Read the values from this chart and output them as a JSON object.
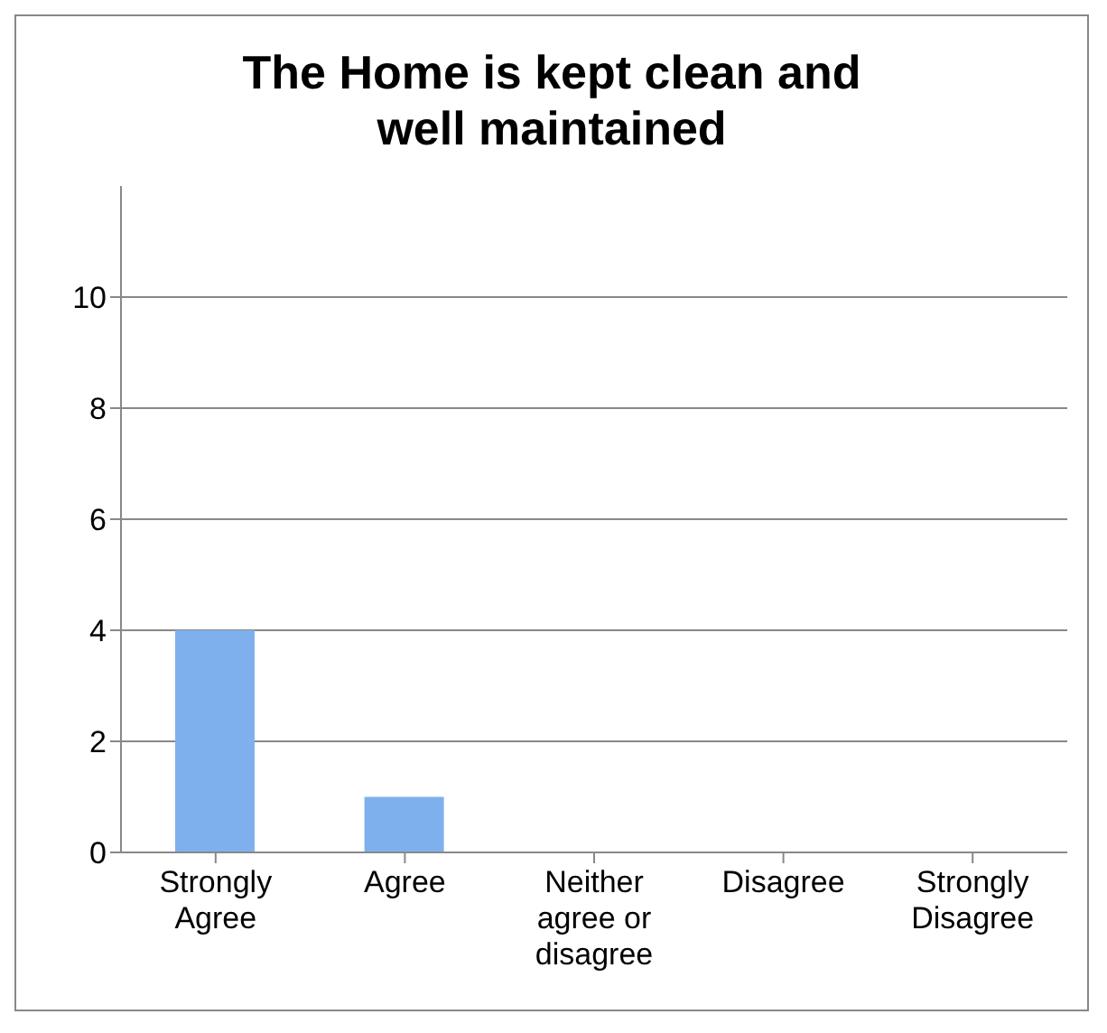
{
  "chart_data": {
    "type": "bar",
    "title": "The Home is kept clean and well maintained",
    "categories": [
      "Strongly Agree",
      "Agree",
      "Neither agree or disagree",
      "Disagree",
      "Strongly Disagree"
    ],
    "values": [
      4,
      1,
      0,
      0,
      0
    ],
    "color": "#7fb0ee",
    "ylim": [
      0,
      12
    ],
    "yticks": [
      0,
      2,
      4,
      6,
      8,
      10
    ],
    "grid": "y"
  }
}
